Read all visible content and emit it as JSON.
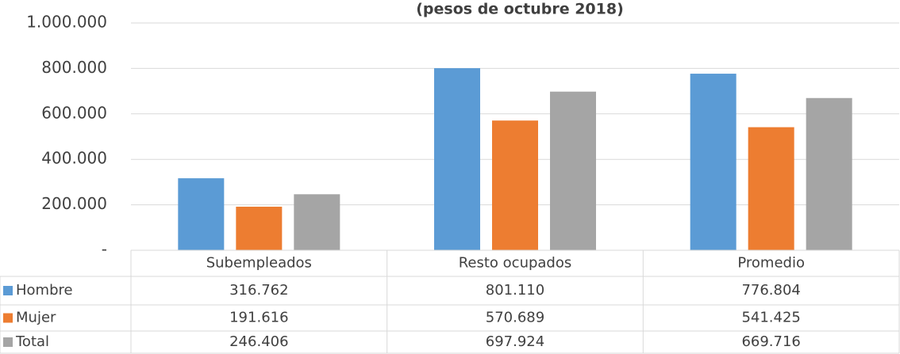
{
  "chart_data": {
    "type": "bar",
    "title": "(pesos de octubre 2018)",
    "categories": [
      "Subempleados",
      "Resto ocupados",
      "Promedio"
    ],
    "series": [
      {
        "name": "Hombre",
        "color": "#5b9bd5",
        "values": [
          316762,
          801110,
          776804
        ],
        "value_labels": [
          "316.762",
          "801.110",
          "776.804"
        ]
      },
      {
        "name": "Mujer",
        "color": "#ed7d31",
        "values": [
          191616,
          570689,
          541425
        ],
        "value_labels": [
          "191.616",
          "570.689",
          "541.425"
        ]
      },
      {
        "name": "Total",
        "color": "#a5a5a5",
        "values": [
          246406,
          697924,
          669716
        ],
        "value_labels": [
          "246.406",
          "697.924",
          "669.716"
        ]
      }
    ],
    "ylim": [
      0,
      1000000
    ],
    "yticks": [
      {
        "value": 0,
        "label": "-"
      },
      {
        "value": 200000,
        "label": "200.000"
      },
      {
        "value": 400000,
        "label": "400.000"
      },
      {
        "value": 600000,
        "label": "600.000"
      },
      {
        "value": 800000,
        "label": "800.000"
      },
      {
        "value": 1000000,
        "label": "1.000.000"
      }
    ],
    "grid": true
  }
}
